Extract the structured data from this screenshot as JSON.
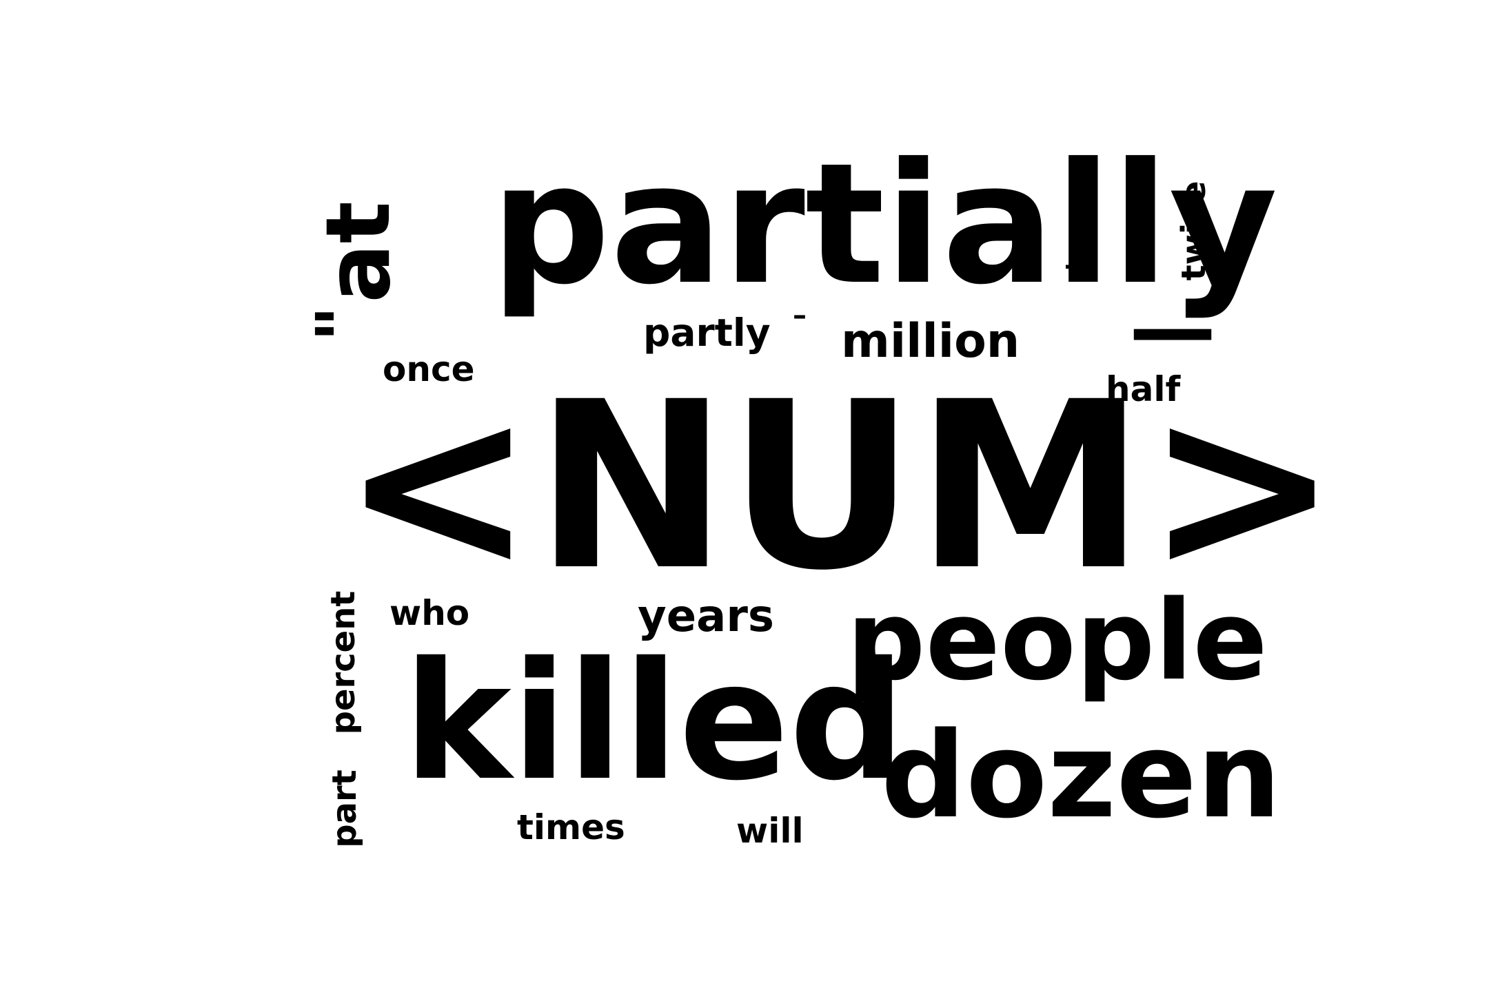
{
  "word_cloud": {
    "text_color": "#000000",
    "background_color": "#ffffff",
    "words": [
      {
        "id": "num",
        "text": "<NUM>",
        "rotated": false
      },
      {
        "id": "partially",
        "text": "partially",
        "rotated": false
      },
      {
        "id": "killed",
        "text": "killed",
        "rotated": false
      },
      {
        "id": "people",
        "text": "people",
        "rotated": false
      },
      {
        "id": "dozen",
        "text": "dozen",
        "rotated": false
      },
      {
        "id": "at",
        "text": "at",
        "rotated": true
      },
      {
        "id": "quote",
        "text": "\"",
        "rotated": true
      },
      {
        "id": "million",
        "text": "million",
        "rotated": false
      },
      {
        "id": "partly",
        "text": "partly",
        "rotated": false
      },
      {
        "id": "years",
        "text": "years",
        "rotated": false
      },
      {
        "id": "once",
        "text": "once",
        "rotated": false
      },
      {
        "id": "half",
        "text": "half",
        "rotated": false
      },
      {
        "id": "who",
        "text": "who",
        "rotated": false
      },
      {
        "id": "times",
        "text": "times",
        "rotated": false
      },
      {
        "id": "will",
        "text": "will",
        "rotated": false
      },
      {
        "id": "twice",
        "text": "twice",
        "rotated": true
      },
      {
        "id": "percent",
        "text": "percent",
        "rotated": true
      },
      {
        "id": "part",
        "text": "part",
        "rotated": true
      },
      {
        "id": "underscore",
        "text": "_",
        "rotated": false
      },
      {
        "id": "dash",
        "text": "–",
        "rotated": false
      },
      {
        "id": "emdash",
        "text": "—",
        "rotated": false
      }
    ]
  }
}
